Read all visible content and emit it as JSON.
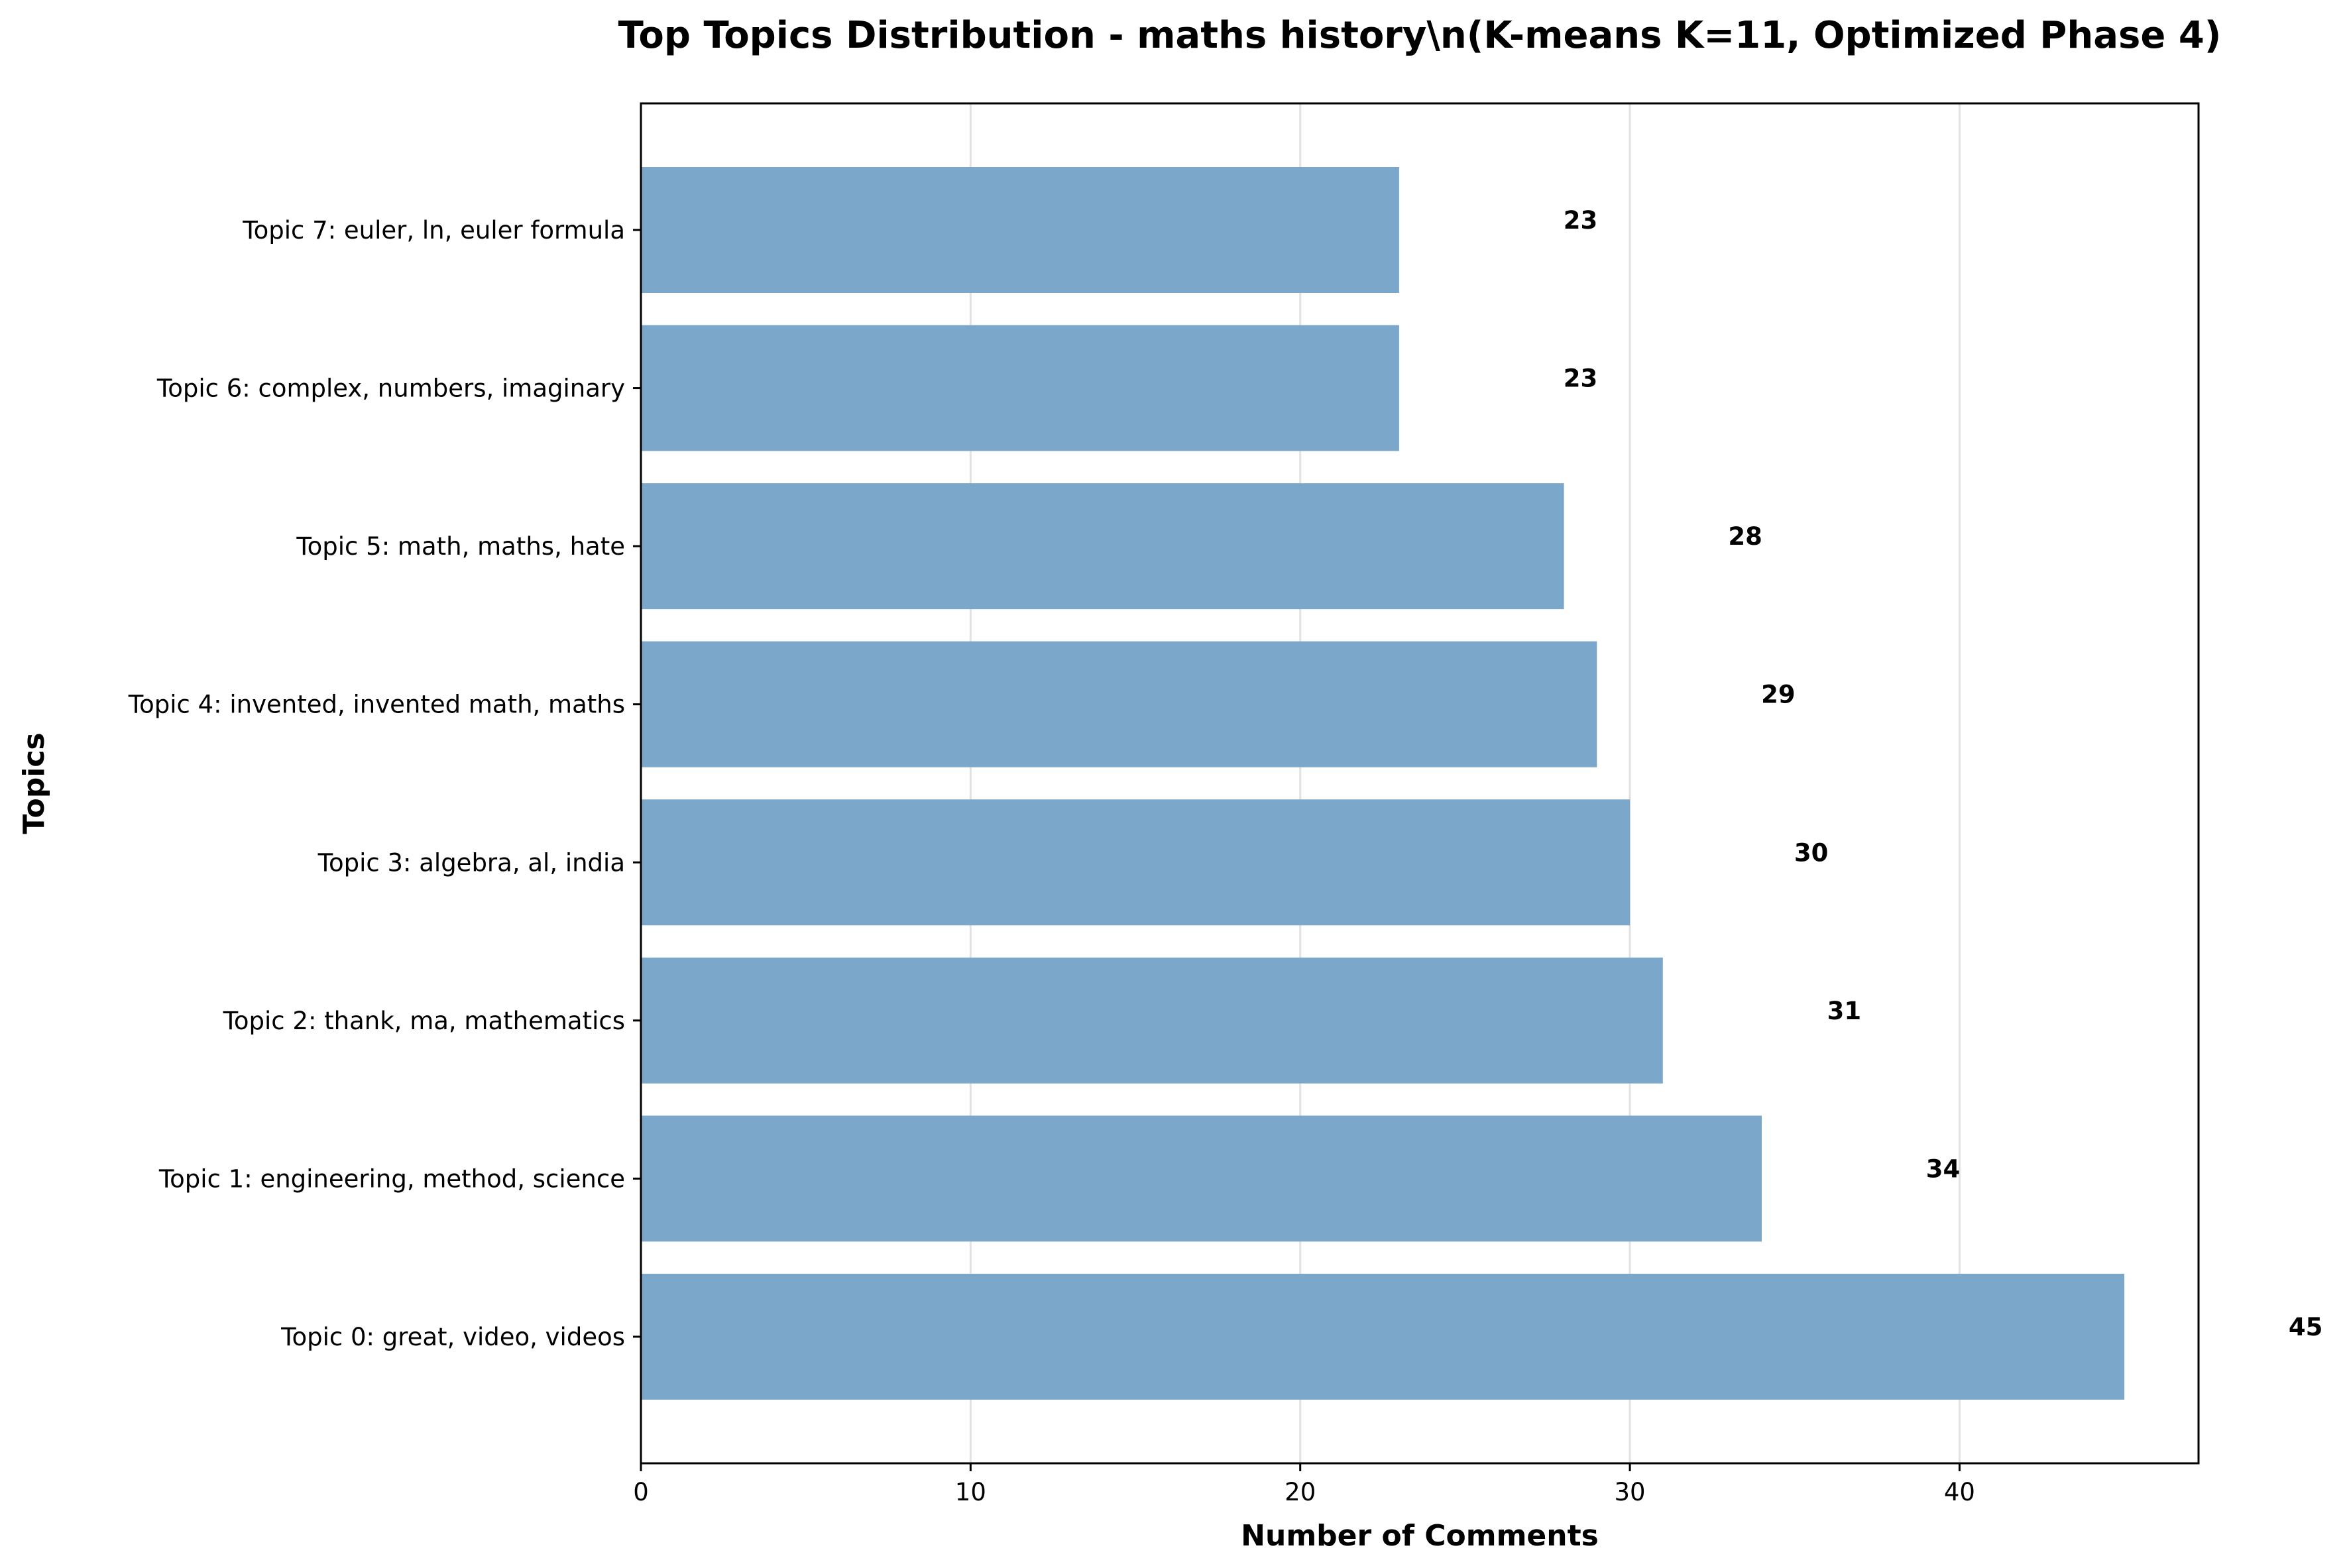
{
  "chart_data": {
    "type": "bar",
    "orientation": "horizontal",
    "title": "Top Topics Distribution - maths history\\n(K-means K=11, Optimized Phase 4)",
    "xlabel": "Number of Comments",
    "ylabel": "Topics",
    "categories": [
      "Topic 0: great, video, videos",
      "Topic 1: engineering, method, science",
      "Topic 2: thank, ma, mathematics",
      "Topic 3: algebra, al, india",
      "Topic 4: invented, invented math, maths",
      "Topic 5: math, maths, hate",
      "Topic 6: complex, numbers, imaginary",
      "Topic 7: euler, ln, euler formula"
    ],
    "values": [
      45,
      34,
      31,
      30,
      29,
      28,
      23,
      23
    ],
    "data_labels": [
      "45",
      "34",
      "31",
      "30",
      "29",
      "28",
      "23",
      "23"
    ],
    "xlim": [
      0,
      47.25
    ],
    "xticks": [
      0,
      10,
      20,
      30,
      40
    ],
    "xtick_labels": [
      "0",
      "10",
      "20",
      "30",
      "40"
    ],
    "grid": "vertical",
    "bar_color": "#7ba7cb",
    "grid_color": "#e2e2e2"
  }
}
